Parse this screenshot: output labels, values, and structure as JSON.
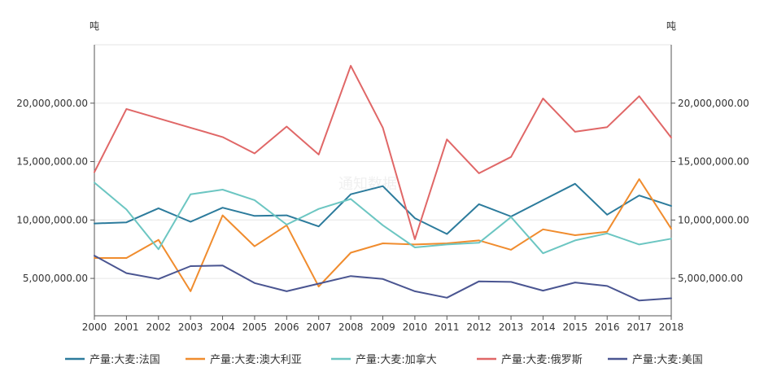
{
  "chart_data": {
    "type": "line",
    "title": "",
    "y_unit_left": "吨",
    "y_unit_right": "吨",
    "xlabel": "",
    "ylabel": "吨",
    "x": [
      "2000",
      "2001",
      "2002",
      "2003",
      "2004",
      "2005",
      "2006",
      "2007",
      "2008",
      "2009",
      "2010",
      "2011",
      "2012",
      "2013",
      "2014",
      "2015",
      "2016",
      "2017",
      "2018"
    ],
    "ylim": [
      1800000,
      25000000
    ],
    "y_ticks": [
      5000000,
      10000000,
      15000000,
      20000000
    ],
    "y_tick_labels": [
      "5,000,000.00",
      "10,000,000.00",
      "15,000,000.00",
      "20,000,000.00"
    ],
    "grid": true,
    "legend_position": "bottom",
    "series": [
      {
        "name": "产量:大麦:法国",
        "color": "#2c7b9c",
        "values": [
          9700000,
          9800000,
          11000000,
          9850000,
          11050000,
          10350000,
          10400000,
          9450000,
          12200000,
          12900000,
          10150000,
          8800000,
          11350000,
          10300000,
          11700000,
          13100000,
          10450000,
          12100000,
          11200000
        ]
      },
      {
        "name": "产量:大麦:澳大利亚",
        "color": "#f08c2e",
        "values": [
          6750000,
          6750000,
          8300000,
          3900000,
          10400000,
          7750000,
          9550000,
          4300000,
          7200000,
          8000000,
          7900000,
          8000000,
          8250000,
          7450000,
          9200000,
          8700000,
          9000000,
          13500000,
          9250000
        ]
      },
      {
        "name": "产量:大麦:加拿大",
        "color": "#6cc6c2",
        "values": [
          13200000,
          10900000,
          7500000,
          12200000,
          12600000,
          11700000,
          9600000,
          10950000,
          11800000,
          9550000,
          7650000,
          7900000,
          8050000,
          10250000,
          7150000,
          8250000,
          8850000,
          7900000,
          8400000
        ]
      },
      {
        "name": "产量:大麦:俄罗斯",
        "color": "#e06767",
        "values": [
          14100000,
          19500000,
          18700000,
          17900000,
          17100000,
          15700000,
          18000000,
          15600000,
          23200000,
          17900000,
          8350000,
          16900000,
          14000000,
          15400000,
          20400000,
          17550000,
          17950000,
          20600000,
          17050000
        ]
      },
      {
        "name": "产量:大麦:美国",
        "color": "#4a5591",
        "values": [
          6950000,
          5450000,
          4950000,
          6050000,
          6100000,
          4600000,
          3900000,
          4550000,
          5200000,
          4950000,
          3900000,
          3350000,
          4750000,
          4700000,
          3950000,
          4650000,
          4350000,
          3100000,
          3300000
        ]
      }
    ]
  },
  "watermark": "通知数据"
}
